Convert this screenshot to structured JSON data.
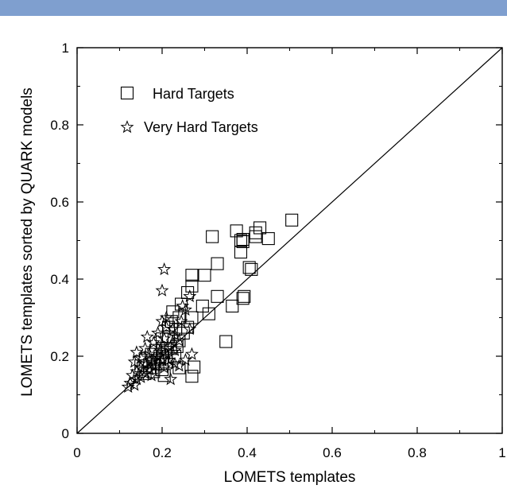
{
  "header": {
    "band_color": "#7f9fcf"
  },
  "chart_data": {
    "type": "scatter",
    "xlabel": "LOMETS templates",
    "ylabel": "LOMETS templates sorted by QUARK models",
    "xlim": [
      0,
      1
    ],
    "ylim": [
      0,
      1
    ],
    "xticks": [
      "0",
      "0.2",
      "0.4",
      "0.6",
      "0.8",
      "1"
    ],
    "yticks": [
      "0",
      "0.2",
      "0.4",
      "0.6",
      "0.8",
      "1"
    ],
    "diagonal_line": true,
    "grid": false,
    "legend": {
      "placement": "top-left"
    },
    "series": [
      {
        "name": "Hard Targets",
        "marker": "square",
        "points": [
          [
            0.505,
            0.553
          ],
          [
            0.43,
            0.533
          ],
          [
            0.375,
            0.525
          ],
          [
            0.42,
            0.51
          ],
          [
            0.42,
            0.52
          ],
          [
            0.45,
            0.505
          ],
          [
            0.318,
            0.51
          ],
          [
            0.39,
            0.503
          ],
          [
            0.385,
            0.5
          ],
          [
            0.39,
            0.497
          ],
          [
            0.385,
            0.47
          ],
          [
            0.405,
            0.43
          ],
          [
            0.41,
            0.425
          ],
          [
            0.33,
            0.44
          ],
          [
            0.3,
            0.41
          ],
          [
            0.27,
            0.41
          ],
          [
            0.27,
            0.382
          ],
          [
            0.393,
            0.355
          ],
          [
            0.39,
            0.35
          ],
          [
            0.33,
            0.355
          ],
          [
            0.365,
            0.33
          ],
          [
            0.26,
            0.365
          ],
          [
            0.295,
            0.33
          ],
          [
            0.31,
            0.31
          ],
          [
            0.245,
            0.335
          ],
          [
            0.225,
            0.315
          ],
          [
            0.24,
            0.3
          ],
          [
            0.27,
            0.3
          ],
          [
            0.222,
            0.29
          ],
          [
            0.232,
            0.27
          ],
          [
            0.26,
            0.275
          ],
          [
            0.215,
            0.275
          ],
          [
            0.25,
            0.26
          ],
          [
            0.215,
            0.25
          ],
          [
            0.2,
            0.245
          ],
          [
            0.24,
            0.24
          ],
          [
            0.35,
            0.238
          ],
          [
            0.235,
            0.225
          ],
          [
            0.2,
            0.22
          ],
          [
            0.22,
            0.22
          ],
          [
            0.185,
            0.215
          ],
          [
            0.21,
            0.21
          ],
          [
            0.175,
            0.205
          ],
          [
            0.195,
            0.2
          ],
          [
            0.23,
            0.2
          ],
          [
            0.2,
            0.195
          ],
          [
            0.16,
            0.19
          ],
          [
            0.18,
            0.185
          ],
          [
            0.21,
            0.185
          ],
          [
            0.19,
            0.18
          ],
          [
            0.15,
            0.175
          ],
          [
            0.17,
            0.17
          ],
          [
            0.24,
            0.17
          ],
          [
            0.2,
            0.165
          ],
          [
            0.18,
            0.16
          ],
          [
            0.16,
            0.155
          ],
          [
            0.205,
            0.15
          ],
          [
            0.275,
            0.172
          ],
          [
            0.27,
            0.148
          ]
        ]
      },
      {
        "name": "Very Hard Targets",
        "marker": "star",
        "points": [
          [
            0.205,
            0.425
          ],
          [
            0.2,
            0.37
          ],
          [
            0.265,
            0.355
          ],
          [
            0.248,
            0.33
          ],
          [
            0.255,
            0.32
          ],
          [
            0.21,
            0.3
          ],
          [
            0.2,
            0.29
          ],
          [
            0.245,
            0.29
          ],
          [
            0.21,
            0.275
          ],
          [
            0.225,
            0.27
          ],
          [
            0.265,
            0.27
          ],
          [
            0.19,
            0.26
          ],
          [
            0.23,
            0.255
          ],
          [
            0.165,
            0.25
          ],
          [
            0.205,
            0.245
          ],
          [
            0.24,
            0.24
          ],
          [
            0.18,
            0.235
          ],
          [
            0.2,
            0.23
          ],
          [
            0.22,
            0.225
          ],
          [
            0.16,
            0.22
          ],
          [
            0.195,
            0.215
          ],
          [
            0.23,
            0.215
          ],
          [
            0.14,
            0.21
          ],
          [
            0.17,
            0.205
          ],
          [
            0.21,
            0.205
          ],
          [
            0.19,
            0.2
          ],
          [
            0.15,
            0.195
          ],
          [
            0.175,
            0.19
          ],
          [
            0.2,
            0.19
          ],
          [
            0.135,
            0.185
          ],
          [
            0.16,
            0.18
          ],
          [
            0.185,
            0.175
          ],
          [
            0.15,
            0.17
          ],
          [
            0.17,
            0.165
          ],
          [
            0.205,
            0.17
          ],
          [
            0.14,
            0.16
          ],
          [
            0.16,
            0.155
          ],
          [
            0.13,
            0.15
          ],
          [
            0.15,
            0.145
          ],
          [
            0.175,
            0.15
          ],
          [
            0.14,
            0.14
          ],
          [
            0.125,
            0.13
          ],
          [
            0.12,
            0.12
          ],
          [
            0.135,
            0.125
          ],
          [
            0.23,
            0.18
          ],
          [
            0.24,
            0.175
          ],
          [
            0.22,
            0.14
          ],
          [
            0.255,
            0.19
          ],
          [
            0.27,
            0.205
          ],
          [
            0.215,
            0.19
          ]
        ]
      }
    ]
  }
}
